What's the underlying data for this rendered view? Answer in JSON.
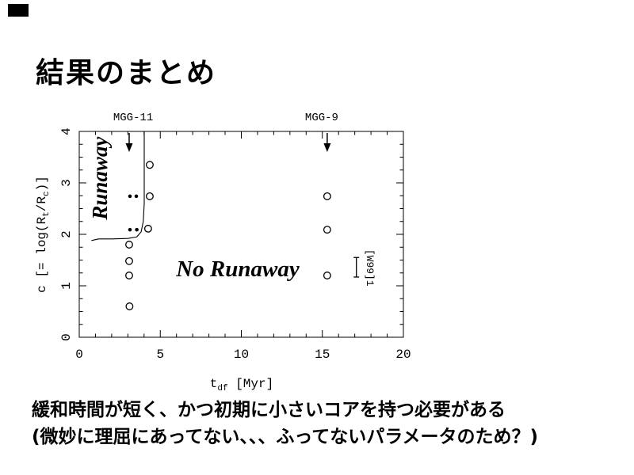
{
  "slide": {
    "title": "結果のまとめ",
    "notes": [
      "緩和時間が短く、かつ初期に小さいコアを持つ必要がある",
      "(微妙に理屈にあってない、、、ふってないパラメータのため？)"
    ]
  },
  "chart_data": {
    "type": "scatter",
    "title": "",
    "xlabel": "t_df [Myr]",
    "ylabel": "c [= log(R_t/R_c)]",
    "xlabel_parts": [
      [
        "t",
        false
      ],
      [
        "df",
        true
      ],
      [
        " [Myr]",
        false
      ]
    ],
    "ylabel_parts": [
      [
        "c [= log(R",
        false
      ],
      [
        "t",
        true
      ],
      [
        "/R",
        false
      ],
      [
        "c",
        true
      ],
      [
        ")]",
        false
      ]
    ],
    "xlim": [
      0,
      20
    ],
    "ylim": [
      0,
      4
    ],
    "x_ticks_major": [
      0,
      5,
      10,
      15,
      20
    ],
    "x_tick_minor_step": 1,
    "y_ticks_major": [
      0,
      1,
      2,
      3,
      4
    ],
    "y_tick_minor_step": 0.25,
    "grid": false,
    "frame_ticks_all_sides": true,
    "cluster_labels": [
      {
        "text": "MGG-11",
        "label_t": 3.33,
        "arrow_t": 3.08
      },
      {
        "text": "MGG-9",
        "label_t": 14.96,
        "arrow_t": 15.3
      }
    ],
    "series": [
      {
        "name": "no-runaway models",
        "marker": "open-circle",
        "points": [
          [
            4.35,
            3.35
          ],
          [
            4.35,
            2.74
          ],
          [
            4.25,
            2.11
          ],
          [
            3.08,
            1.8
          ],
          [
            3.08,
            1.48
          ],
          [
            3.08,
            1.2
          ],
          [
            3.1,
            0.6
          ],
          [
            15.3,
            2.74
          ],
          [
            15.3,
            2.09
          ],
          [
            15.3,
            1.2
          ]
        ]
      },
      {
        "name": "runaway models",
        "marker": "filled-dot",
        "points": [
          [
            3.13,
            2.74
          ],
          [
            3.52,
            2.74
          ],
          [
            3.13,
            2.09
          ],
          [
            3.55,
            2.09
          ]
        ]
      }
    ],
    "boundary_curve": [
      [
        4.01,
        4.0
      ],
      [
        4.01,
        2.6
      ],
      [
        3.95,
        2.25
      ],
      [
        3.82,
        2.05
      ],
      [
        3.55,
        1.95
      ],
      [
        3.0,
        1.92
      ],
      [
        2.0,
        1.91
      ],
      [
        1.2,
        1.91
      ],
      [
        0.75,
        1.88
      ]
    ],
    "annotations": {
      "runaway": {
        "text": "Runaway",
        "t": 1.71,
        "c": 3.09,
        "rotation": -90
      },
      "no_runaway": {
        "text": "No Runaway",
        "t": 9.78,
        "c": 1.34,
        "rotation": 0
      },
      "w99": {
        "text": "[W99]1",
        "t": 17.75,
        "c": 1.35,
        "rotation": 90,
        "bar_t": 17.1,
        "bar_c": [
          1.17,
          1.55
        ]
      }
    },
    "colors": {
      "ink": "#000000",
      "background": "#ffffff"
    }
  }
}
